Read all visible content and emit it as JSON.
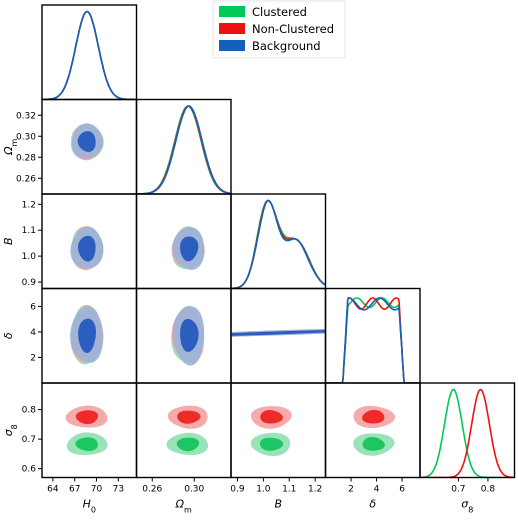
{
  "chart_data": {
    "type": "corner",
    "parameters": [
      {
        "id": "H0",
        "label_base": "H",
        "label_sub": "0",
        "lim": [
          62.5,
          75.5
        ],
        "ticks": [
          "64",
          "67",
          "70",
          "73"
        ]
      },
      {
        "id": "Om",
        "label_base": "Ω",
        "label_sub": "m",
        "lim": [
          0.245,
          0.335
        ],
        "ticks": [
          "0.26",
          "0.30"
        ],
        "yticks": [
          "0.26",
          "0.28",
          "0.30",
          "0.32"
        ]
      },
      {
        "id": "B",
        "label_base": "B",
        "label_sub": "",
        "lim": [
          0.875,
          1.24
        ],
        "ticks": [
          "0.9",
          "1.0",
          "1.1",
          "1.2"
        ],
        "yticks": [
          "0.9",
          "1.0",
          "1.1",
          "1.2"
        ]
      },
      {
        "id": "delta",
        "label_base": "δ",
        "label_sub": "",
        "lim": [
          0.0,
          7.4
        ],
        "ticks": [
          "2",
          "4",
          "6"
        ],
        "yticks": [
          "2",
          "4",
          "6"
        ]
      },
      {
        "id": "s8",
        "label_base": "σ",
        "label_sub": "8",
        "lim": [
          0.57,
          0.89
        ],
        "ticks": [
          "0.7",
          "0.8"
        ],
        "yticks": [
          "0.6",
          "0.7",
          "0.8"
        ]
      }
    ],
    "legend": {
      "position": "top-right",
      "entries": [
        {
          "name": "Clustered",
          "color": "#00c957"
        },
        {
          "name": "Non-Clustered",
          "color": "#ee1111"
        },
        {
          "name": "Background",
          "color": "#1560bd"
        }
      ]
    },
    "series": [
      {
        "name": "Clustered",
        "color": "#00c957",
        "fill_outer": "#8fe0b2",
        "fill_inner": "#0fc45a",
        "means": {
          "H0": 68.7,
          "Om": 0.294,
          "B": 1.03,
          "delta": 3.75,
          "s8": 0.683
        },
        "sigmas": {
          "H0": 1.55,
          "Om": 0.0125,
          "s8": 0.03
        }
      },
      {
        "name": "Non-Clustered",
        "color": "#ee1111",
        "fill_outer": "#f5a3a3",
        "fill_inner": "#f01c1c",
        "means": {
          "H0": 68.7,
          "Om": 0.2945,
          "B": 1.03,
          "delta": 3.75,
          "s8": 0.775
        },
        "sigmas": {
          "H0": 1.55,
          "Om": 0.0125,
          "s8": 0.03
        }
      },
      {
        "name": "Background",
        "color": "#1560bd",
        "fill_outer": "#9bb6dc",
        "fill_inner": "#1f57bd",
        "means": {
          "H0": 68.7,
          "Om": 0.295,
          "B": 1.03,
          "delta": 3.75
        },
        "sigmas": {
          "H0": 1.55,
          "Om": 0.0125
        }
      }
    ]
  }
}
